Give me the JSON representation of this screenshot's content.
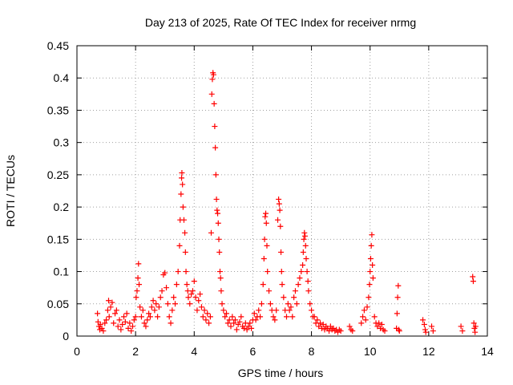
{
  "chart_data": {
    "type": "scatter",
    "title": "Day 213 of 2025, Rate Of TEC Index for receiver nrmg",
    "xlabel": "GPS time / hours",
    "ylabel": "ROTI / TECUs",
    "xlim": [
      0,
      14
    ],
    "ylim": [
      0,
      0.45
    ],
    "xticks": [
      0,
      2,
      4,
      6,
      8,
      10,
      12,
      14
    ],
    "yticks": [
      0,
      0.05,
      0.1,
      0.15,
      0.2,
      0.25,
      0.3,
      0.35,
      0.4,
      0.45
    ],
    "xtick_labels": [
      "0",
      "2",
      "4",
      "6",
      "8",
      "10",
      "12",
      "14"
    ],
    "ytick_labels": [
      "0",
      "0.05",
      "0.1",
      "0.15",
      "0.2",
      "0.25",
      "0.3",
      "0.35",
      "0.4",
      "0.45"
    ],
    "grid": true,
    "marker": "+",
    "color": "#ff0000",
    "series": [
      {
        "name": "ROTI",
        "points": [
          [
            0.7,
            0.035
          ],
          [
            0.72,
            0.022
          ],
          [
            0.75,
            0.015
          ],
          [
            0.78,
            0.01
          ],
          [
            0.8,
            0.018
          ],
          [
            0.85,
            0.012
          ],
          [
            0.9,
            0.008
          ],
          [
            0.95,
            0.02
          ],
          [
            1.0,
            0.025
          ],
          [
            1.05,
            0.04
          ],
          [
            1.08,
            0.055
          ],
          [
            1.1,
            0.03
          ],
          [
            1.15,
            0.045
          ],
          [
            1.2,
            0.052
          ],
          [
            1.25,
            0.02
          ],
          [
            1.3,
            0.035
          ],
          [
            1.35,
            0.04
          ],
          [
            1.4,
            0.015
          ],
          [
            1.45,
            0.025
          ],
          [
            1.5,
            0.01
          ],
          [
            1.55,
            0.018
          ],
          [
            1.6,
            0.03
          ],
          [
            1.65,
            0.022
          ],
          [
            1.7,
            0.035
          ],
          [
            1.75,
            0.012
          ],
          [
            1.8,
            0.02
          ],
          [
            1.85,
            0.008
          ],
          [
            1.9,
            0.015
          ],
          [
            1.95,
            0.025
          ],
          [
            2.0,
            0.03
          ],
          [
            2.02,
            0.06
          ],
          [
            2.05,
            0.07
          ],
          [
            2.08,
            0.09
          ],
          [
            2.1,
            0.112
          ],
          [
            2.12,
            0.08
          ],
          [
            2.15,
            0.045
          ],
          [
            2.2,
            0.03
          ],
          [
            2.25,
            0.04
          ],
          [
            2.3,
            0.02
          ],
          [
            2.35,
            0.015
          ],
          [
            2.4,
            0.025
          ],
          [
            2.45,
            0.035
          ],
          [
            2.5,
            0.03
          ],
          [
            2.55,
            0.045
          ],
          [
            2.6,
            0.055
          ],
          [
            2.65,
            0.04
          ],
          [
            2.7,
            0.05
          ],
          [
            2.75,
            0.03
          ],
          [
            2.8,
            0.045
          ],
          [
            2.85,
            0.06
          ],
          [
            2.9,
            0.07
          ],
          [
            2.95,
            0.095
          ],
          [
            3.0,
            0.098
          ],
          [
            3.05,
            0.075
          ],
          [
            3.1,
            0.05
          ],
          [
            3.15,
            0.03
          ],
          [
            3.2,
            0.02
          ],
          [
            3.25,
            0.04
          ],
          [
            3.3,
            0.06
          ],
          [
            3.35,
            0.05
          ],
          [
            3.4,
            0.08
          ],
          [
            3.45,
            0.1
          ],
          [
            3.5,
            0.14
          ],
          [
            3.52,
            0.18
          ],
          [
            3.55,
            0.22
          ],
          [
            3.57,
            0.245
          ],
          [
            3.58,
            0.253
          ],
          [
            3.6,
            0.235
          ],
          [
            3.62,
            0.2
          ],
          [
            3.65,
            0.18
          ],
          [
            3.68,
            0.16
          ],
          [
            3.7,
            0.13
          ],
          [
            3.72,
            0.1
          ],
          [
            3.75,
            0.08
          ],
          [
            3.78,
            0.07
          ],
          [
            3.8,
            0.06
          ],
          [
            3.85,
            0.05
          ],
          [
            3.9,
            0.065
          ],
          [
            3.95,
            0.07
          ],
          [
            4.0,
            0.085
          ],
          [
            4.05,
            0.06
          ],
          [
            4.1,
            0.04
          ],
          [
            4.15,
            0.055
          ],
          [
            4.2,
            0.065
          ],
          [
            4.25,
            0.045
          ],
          [
            4.3,
            0.03
          ],
          [
            4.35,
            0.04
          ],
          [
            4.4,
            0.025
          ],
          [
            4.45,
            0.035
          ],
          [
            4.5,
            0.02
          ],
          [
            4.55,
            0.03
          ],
          [
            4.58,
            0.16
          ],
          [
            4.6,
            0.375
          ],
          [
            4.62,
            0.398
          ],
          [
            4.64,
            0.408
          ],
          [
            4.66,
            0.405
          ],
          [
            4.68,
            0.36
          ],
          [
            4.7,
            0.325
          ],
          [
            4.72,
            0.292
          ],
          [
            4.74,
            0.25
          ],
          [
            4.76,
            0.212
          ],
          [
            4.78,
            0.195
          ],
          [
            4.8,
            0.19
          ],
          [
            4.82,
            0.175
          ],
          [
            4.84,
            0.15
          ],
          [
            4.86,
            0.13
          ],
          [
            4.88,
            0.1
          ],
          [
            4.9,
            0.09
          ],
          [
            4.92,
            0.07
          ],
          [
            4.95,
            0.05
          ],
          [
            5.0,
            0.04
          ],
          [
            5.05,
            0.03
          ],
          [
            5.1,
            0.035
          ],
          [
            5.15,
            0.02
          ],
          [
            5.2,
            0.025
          ],
          [
            5.25,
            0.015
          ],
          [
            5.3,
            0.03
          ],
          [
            5.35,
            0.02
          ],
          [
            5.4,
            0.025
          ],
          [
            5.45,
            0.01
          ],
          [
            5.5,
            0.018
          ],
          [
            5.55,
            0.022
          ],
          [
            5.6,
            0.03
          ],
          [
            5.65,
            0.015
          ],
          [
            5.7,
            0.012
          ],
          [
            5.75,
            0.02
          ],
          [
            5.8,
            0.01
          ],
          [
            5.85,
            0.015
          ],
          [
            5.9,
            0.02
          ],
          [
            5.95,
            0.012
          ],
          [
            6.0,
            0.025
          ],
          [
            6.05,
            0.035
          ],
          [
            6.1,
            0.025
          ],
          [
            6.15,
            0.03
          ],
          [
            6.2,
            0.04
          ],
          [
            6.25,
            0.03
          ],
          [
            6.3,
            0.05
          ],
          [
            6.35,
            0.08
          ],
          [
            6.38,
            0.12
          ],
          [
            6.4,
            0.15
          ],
          [
            6.42,
            0.185
          ],
          [
            6.44,
            0.19
          ],
          [
            6.46,
            0.175
          ],
          [
            6.48,
            0.14
          ],
          [
            6.5,
            0.1
          ],
          [
            6.55,
            0.07
          ],
          [
            6.6,
            0.05
          ],
          [
            6.65,
            0.04
          ],
          [
            6.7,
            0.03
          ],
          [
            6.75,
            0.025
          ],
          [
            6.8,
            0.04
          ],
          [
            6.85,
            0.18
          ],
          [
            6.88,
            0.212
          ],
          [
            6.9,
            0.205
          ],
          [
            6.92,
            0.195
          ],
          [
            6.94,
            0.17
          ],
          [
            6.96,
            0.13
          ],
          [
            6.98,
            0.1
          ],
          [
            7.0,
            0.08
          ],
          [
            7.05,
            0.06
          ],
          [
            7.1,
            0.04
          ],
          [
            7.15,
            0.03
          ],
          [
            7.2,
            0.05
          ],
          [
            7.25,
            0.04
          ],
          [
            7.3,
            0.045
          ],
          [
            7.35,
            0.03
          ],
          [
            7.4,
            0.06
          ],
          [
            7.45,
            0.07
          ],
          [
            7.5,
            0.05
          ],
          [
            7.55,
            0.08
          ],
          [
            7.6,
            0.09
          ],
          [
            7.65,
            0.1
          ],
          [
            7.7,
            0.11
          ],
          [
            7.72,
            0.13
          ],
          [
            7.74,
            0.15
          ],
          [
            7.76,
            0.16
          ],
          [
            7.78,
            0.155
          ],
          [
            7.8,
            0.14
          ],
          [
            7.82,
            0.12
          ],
          [
            7.85,
            0.1
          ],
          [
            7.88,
            0.085
          ],
          [
            7.9,
            0.07
          ],
          [
            7.95,
            0.05
          ],
          [
            8.0,
            0.04
          ],
          [
            8.05,
            0.03
          ],
          [
            8.1,
            0.03
          ],
          [
            8.15,
            0.02
          ],
          [
            8.2,
            0.025
          ],
          [
            8.25,
            0.015
          ],
          [
            8.3,
            0.02
          ],
          [
            8.35,
            0.012
          ],
          [
            8.4,
            0.018
          ],
          [
            8.45,
            0.01
          ],
          [
            8.5,
            0.015
          ],
          [
            8.55,
            0.012
          ],
          [
            8.6,
            0.008
          ],
          [
            8.65,
            0.015
          ],
          [
            8.7,
            0.01
          ],
          [
            8.75,
            0.012
          ],
          [
            8.8,
            0.008
          ],
          [
            8.85,
            0.01
          ],
          [
            8.9,
            0.006
          ],
          [
            8.95,
            0.01
          ],
          [
            9.0,
            0.008
          ],
          [
            9.3,
            0.015
          ],
          [
            9.35,
            0.01
          ],
          [
            9.4,
            0.008
          ],
          [
            9.7,
            0.02
          ],
          [
            9.75,
            0.03
          ],
          [
            9.8,
            0.04
          ],
          [
            9.85,
            0.025
          ],
          [
            9.9,
            0.045
          ],
          [
            9.95,
            0.06
          ],
          [
            9.98,
            0.08
          ],
          [
            10.0,
            0.1
          ],
          [
            10.02,
            0.12
          ],
          [
            10.04,
            0.14
          ],
          [
            10.06,
            0.157
          ],
          [
            10.08,
            0.11
          ],
          [
            10.1,
            0.09
          ],
          [
            10.15,
            0.03
          ],
          [
            10.2,
            0.02
          ],
          [
            10.25,
            0.015
          ],
          [
            10.3,
            0.02
          ],
          [
            10.35,
            0.012
          ],
          [
            10.4,
            0.018
          ],
          [
            10.45,
            0.01
          ],
          [
            10.5,
            0.008
          ],
          [
            10.9,
            0.012
          ],
          [
            10.92,
            0.035
          ],
          [
            10.94,
            0.06
          ],
          [
            10.96,
            0.078
          ],
          [
            10.98,
            0.01
          ],
          [
            11.0,
            0.008
          ],
          [
            11.8,
            0.025
          ],
          [
            11.85,
            0.018
          ],
          [
            11.88,
            0.01
          ],
          [
            11.9,
            0.006
          ],
          [
            12.1,
            0.015
          ],
          [
            12.15,
            0.008
          ],
          [
            13.1,
            0.015
          ],
          [
            13.15,
            0.008
          ],
          [
            13.5,
            0.092
          ],
          [
            13.52,
            0.085
          ],
          [
            13.54,
            0.02
          ],
          [
            13.56,
            0.012
          ],
          [
            13.58,
            0.006
          ],
          [
            13.6,
            0.015
          ]
        ]
      }
    ]
  }
}
